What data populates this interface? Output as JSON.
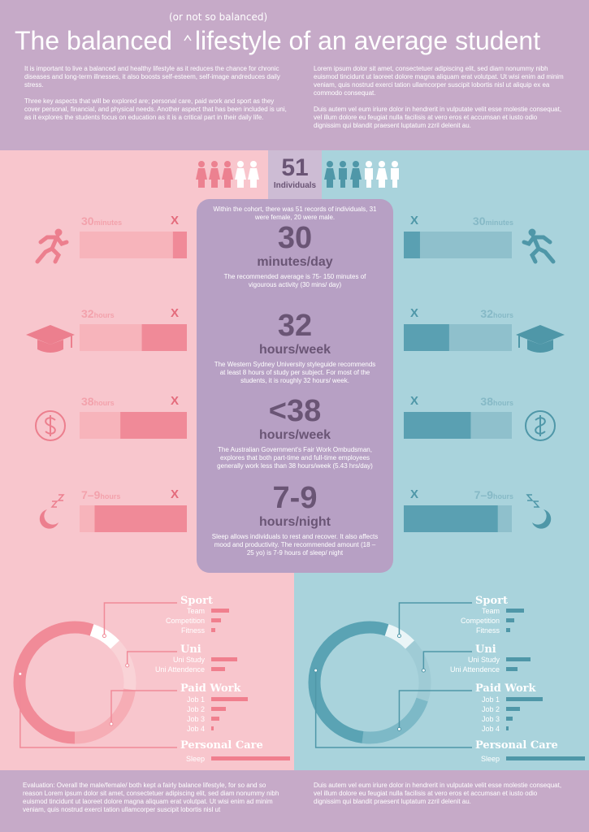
{
  "header": {
    "title_start": "The balanced",
    "title_insert": "(or not so balanced)",
    "title_end": "lifestyle of an average student",
    "left_paragraphs": [
      "It is important to live a balanced and healthy lifestyle as it reduces the chance for chronic diseases and long-term illnesses, it also boosts self-esteem, self-image andreduces daily stress.",
      "Three key aspects that will be explored are; personal care, paid work and sport as they cover personal, financial, and physical needs. Another aspect that has been included is uni, as it explores the students focus on education as it is a critical part in their daily life."
    ],
    "right_paragraphs": [
      "Lorem ipsum dolor sit amet, consectetuer adipiscing elit, sed diam nonummy nibh euismod tincidunt ut laoreet dolore magna aliquam erat volutpat. Ut wisi enim ad minim veniam, quis nostrud exerci tation ullamcorper suscipit lobortis nisl ut aliquip ex ea commodo consequat.",
      "Duis autem vel eum iriure dolor in hendrerit in vulputate velit esse molestie consequat, vel illum dolore eu feugiat nulla facilisis at vero eros et accumsan et iusto odio dignissim qui blandit praesent luptatum zzril delenit au."
    ]
  },
  "cohort": {
    "count": "51",
    "label": "Individuals",
    "description": "Within the cohort, there was 51 records of individuals, 31 were female, 20 were male."
  },
  "metrics": [
    {
      "amount": "30",
      "unit": "minutes",
      "marker": "X",
      "headline": "30",
      "headline_unit": "minutes/day",
      "description": "The recommended average is 75- 150 minutes of vigourous activity (30 mins/ day)",
      "female_share": 0.13,
      "male_share": 0.15
    },
    {
      "amount": "32",
      "unit": "hours",
      "marker": "X",
      "headline": "32",
      "headline_unit": "hours/week",
      "description": "The Western Sydney University styleguide recommends at least 8 hours of study per subject. For most of the students, it is roughly 32 hours/ week.",
      "female_share": 0.42,
      "male_share": 0.42
    },
    {
      "amount": "38",
      "unit": "hours",
      "marker": "X",
      "headline": "<38",
      "headline_unit": "hours/week",
      "description": "The Australian Government's Fair Work Ombudsman, explores that both part-time and full-time employees generally work less than 38 hours/week (5.43 hrs/day)",
      "female_share": 0.62,
      "male_share": 0.62
    },
    {
      "amount": "7–9",
      "unit": "hours",
      "marker": "X",
      "headline": "7-9",
      "headline_unit": "hours/night",
      "description": "Sleep allows individuals to rest and recover. It also affects mood and productivity. The recommended amount (18 – 25 yo) is 7-9 hours of sleep/ night",
      "female_share": 0.86,
      "male_share": 0.87
    }
  ],
  "breakdown": {
    "female": {
      "groups": [
        {
          "title": "Sport",
          "share": 8,
          "items": [
            {
              "label": "Team",
              "value": 22
            },
            {
              "label": "Competition",
              "value": 12
            },
            {
              "label": "Fitness",
              "value": 5
            }
          ]
        },
        {
          "title": "Uni",
          "share": 14,
          "items": [
            {
              "label": "Uni Study",
              "value": 32
            },
            {
              "label": "Uni Attendence",
              "value": 17
            }
          ]
        },
        {
          "title": "Paid Work",
          "share": 23,
          "items": [
            {
              "label": "Job 1",
              "value": 45
            },
            {
              "label": "Job 2",
              "value": 18
            },
            {
              "label": "Job 3",
              "value": 10
            },
            {
              "label": "Job 4",
              "value": 3
            }
          ]
        },
        {
          "title": "Personal Care",
          "share": 55,
          "items": [
            {
              "label": "Sleep",
              "value": 97
            }
          ]
        }
      ]
    },
    "male": {
      "groups": [
        {
          "title": "Sport",
          "share": 8,
          "items": [
            {
              "label": "Team",
              "value": 22
            },
            {
              "label": "Competition",
              "value": 10
            },
            {
              "label": "Fitness",
              "value": 5
            }
          ]
        },
        {
          "title": "Uni",
          "share": 17,
          "items": [
            {
              "label": "Uni Study",
              "value": 30
            },
            {
              "label": "Uni Attendence",
              "value": 14
            }
          ]
        },
        {
          "title": "Paid Work",
          "share": 22,
          "items": [
            {
              "label": "Job 1",
              "value": 45
            },
            {
              "label": "Job 2",
              "value": 17
            },
            {
              "label": "Job 3",
              "value": 8
            },
            {
              "label": "Job 4",
              "value": 3
            }
          ]
        },
        {
          "title": "Personal Care",
          "share": 53,
          "items": [
            {
              "label": "Sleep",
              "value": 97
            }
          ]
        }
      ]
    }
  },
  "footer": {
    "left": "Evaluation: Overall the male/female/ both kept a fairly balance lifestyle, for so and so reason Lorem ipsum dolor sit amet, consectetuer adipiscing elit, sed diam nonummy nibh euismod tincidunt ut laoreet dolore magna aliquam erat volutpat. Ut wisi enim ad minim veniam, quis nostrud exerci tation ullamcorper suscipit lobortis nisl ut",
    "right": "Duis autem vel eum iriure dolor in hendrerit in vulputate velit esse molestie consequat, vel illum dolore eu feugiat nulla facilisis at vero eros et accumsan et iusto odio dignissim qui blandit praesent luptatum zzril delenit au."
  }
}
